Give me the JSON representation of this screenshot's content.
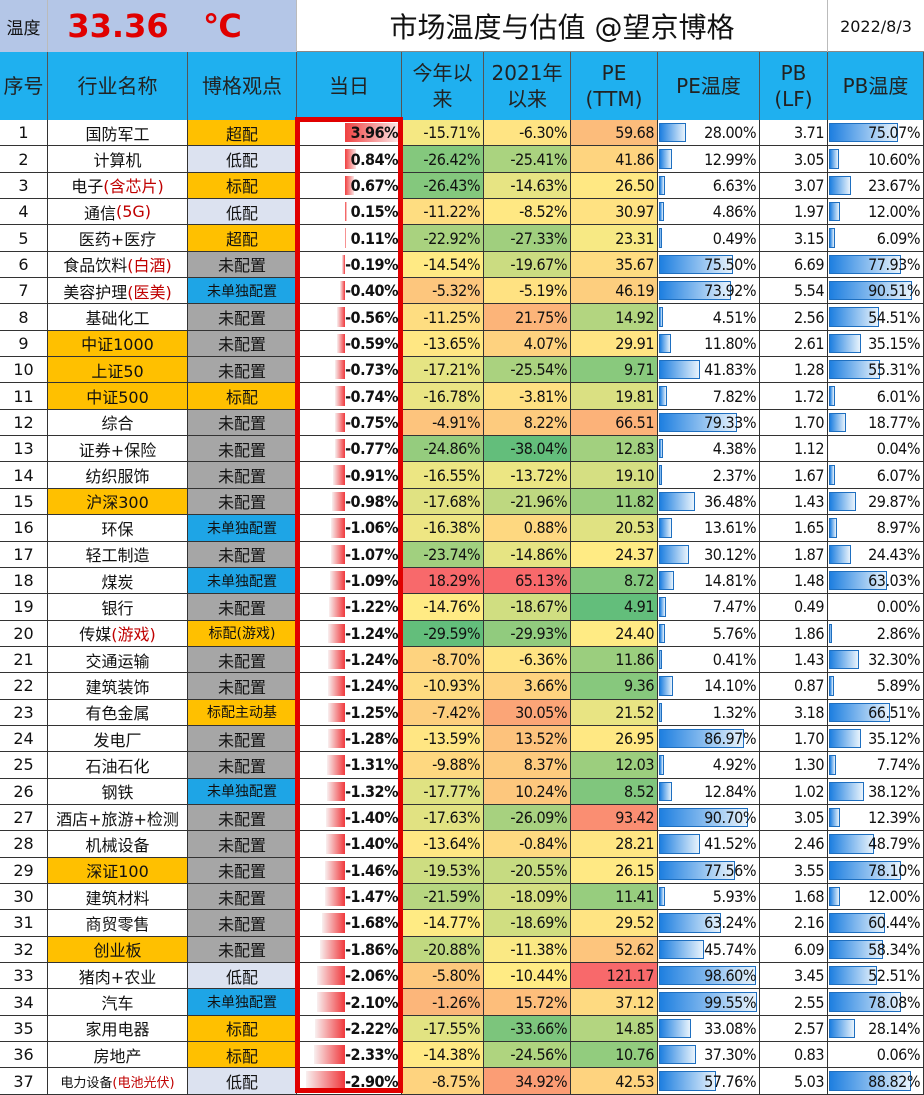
{
  "header": {
    "temp_label": "温度",
    "temp_value": "33.36",
    "temp_unit": "℃",
    "title": "市场温度与估值  @望京博格",
    "date": "2022/8/3"
  },
  "columns": [
    "序号",
    "行业名称",
    "博格观点",
    "当日",
    "今年以来",
    "2021年以来",
    "PE\n(TTM)",
    "PE温度",
    "PB\n(LF)",
    "PB温度"
  ],
  "colors": {
    "overweight": "#FFC000",
    "underweight": "#DCE2F0",
    "unallocated": "#A6A6A6",
    "not_separate": "#1EA5E6",
    "header": "#1FB0EF",
    "frame": "#E00000"
  },
  "rows": [
    {
      "no": "1",
      "name": "国防军工",
      "opinion": "超配",
      "op": "overweight",
      "day": "3.96%",
      "ytd": "-15.71%",
      "y2021": "-6.30%",
      "pe": "59.68",
      "pe_temp": "28.00%",
      "pb": "3.71",
      "pb_temp": "75.07%"
    },
    {
      "no": "2",
      "name": "计算机",
      "opinion": "低配",
      "op": "underweight",
      "day": "0.84%",
      "ytd": "-26.42%",
      "y2021": "-25.41%",
      "pe": "41.86",
      "pe_temp": "12.99%",
      "pb": "3.05",
      "pb_temp": "10.60%"
    },
    {
      "no": "3",
      "name": "电子",
      "name_note": "(含芯片)",
      "opinion": "标配",
      "op": "overweight",
      "day": "0.67%",
      "ytd": "-26.43%",
      "y2021": "-14.63%",
      "pe": "26.50",
      "pe_temp": "6.63%",
      "pb": "3.07",
      "pb_temp": "23.67%"
    },
    {
      "no": "4",
      "name": "通信",
      "name_note": "(5G)",
      "opinion": "低配",
      "op": "underweight",
      "day": "0.15%",
      "ytd": "-11.22%",
      "y2021": "-8.52%",
      "pe": "30.97",
      "pe_temp": "4.86%",
      "pb": "1.97",
      "pb_temp": "12.00%"
    },
    {
      "no": "5",
      "name": "医药+医疗",
      "opinion": "超配",
      "op": "overweight",
      "day": "0.11%",
      "ytd": "-22.92%",
      "y2021": "-27.33%",
      "pe": "23.31",
      "pe_temp": "0.49%",
      "pb": "3.15",
      "pb_temp": "6.09%"
    },
    {
      "no": "6",
      "name": "食品饮料",
      "name_note": "(白酒)",
      "opinion": "未配置",
      "op": "unallocated",
      "day": "-0.19%",
      "ytd": "-14.54%",
      "y2021": "-19.67%",
      "pe": "35.67",
      "pe_temp": "75.50%",
      "pb": "6.69",
      "pb_temp": "77.93%"
    },
    {
      "no": "7",
      "name": "美容护理",
      "name_note": "(医美)",
      "opinion": "未单独配置",
      "op": "not_separate",
      "day": "-0.40%",
      "ytd": "-5.32%",
      "y2021": "-5.19%",
      "pe": "46.19",
      "pe_temp": "73.92%",
      "pb": "5.54",
      "pb_temp": "90.51%"
    },
    {
      "no": "8",
      "name": "基础化工",
      "opinion": "未配置",
      "op": "unallocated",
      "day": "-0.56%",
      "ytd": "-11.25%",
      "y2021": "21.75%",
      "pe": "14.92",
      "pe_temp": "4.51%",
      "pb": "2.56",
      "pb_temp": "54.51%"
    },
    {
      "no": "9",
      "name": "中证1000",
      "index": true,
      "opinion": "未配置",
      "op": "unallocated",
      "day": "-0.59%",
      "ytd": "-13.65%",
      "y2021": "4.07%",
      "pe": "29.91",
      "pe_temp": "11.80%",
      "pb": "2.61",
      "pb_temp": "35.15%"
    },
    {
      "no": "10",
      "name": "上证50",
      "index": true,
      "opinion": "未配置",
      "op": "unallocated",
      "day": "-0.73%",
      "ytd": "-17.21%",
      "y2021": "-25.54%",
      "pe": "9.71",
      "pe_temp": "41.83%",
      "pb": "1.28",
      "pb_temp": "55.31%"
    },
    {
      "no": "11",
      "name": "中证500",
      "index": true,
      "opinion": "标配",
      "op": "overweight",
      "day": "-0.74%",
      "ytd": "-16.78%",
      "y2021": "-3.81%",
      "pe": "19.81",
      "pe_temp": "7.82%",
      "pb": "1.72",
      "pb_temp": "6.01%"
    },
    {
      "no": "12",
      "name": "综合",
      "opinion": "未配置",
      "op": "unallocated",
      "day": "-0.75%",
      "ytd": "-4.91%",
      "y2021": "8.22%",
      "pe": "66.51",
      "pe_temp": "79.33%",
      "pb": "1.70",
      "pb_temp": "18.77%"
    },
    {
      "no": "13",
      "name": "证券+保险",
      "opinion": "未配置",
      "op": "unallocated",
      "day": "-0.77%",
      "ytd": "-24.86%",
      "y2021": "-38.04%",
      "pe": "12.83",
      "pe_temp": "4.38%",
      "pb": "1.12",
      "pb_temp": "0.04%"
    },
    {
      "no": "14",
      "name": "纺织服饰",
      "opinion": "未配置",
      "op": "unallocated",
      "day": "-0.91%",
      "ytd": "-16.55%",
      "y2021": "-13.72%",
      "pe": "19.10",
      "pe_temp": "2.37%",
      "pb": "1.67",
      "pb_temp": "6.07%"
    },
    {
      "no": "15",
      "name": "沪深300",
      "index": true,
      "opinion": "未配置",
      "op": "unallocated",
      "day": "-0.98%",
      "ytd": "-17.68%",
      "y2021": "-21.96%",
      "pe": "11.82",
      "pe_temp": "36.48%",
      "pb": "1.43",
      "pb_temp": "29.87%"
    },
    {
      "no": "16",
      "name": "环保",
      "opinion": "未单独配置",
      "op": "not_separate",
      "day": "-1.06%",
      "ytd": "-16.38%",
      "y2021": "0.88%",
      "pe": "20.53",
      "pe_temp": "13.61%",
      "pb": "1.65",
      "pb_temp": "8.97%"
    },
    {
      "no": "17",
      "name": "轻工制造",
      "opinion": "未配置",
      "op": "unallocated",
      "day": "-1.07%",
      "ytd": "-23.74%",
      "y2021": "-14.86%",
      "pe": "24.37",
      "pe_temp": "30.12%",
      "pb": "1.87",
      "pb_temp": "24.43%"
    },
    {
      "no": "18",
      "name": "煤炭",
      "opinion": "未单独配置",
      "op": "not_separate",
      "day": "-1.09%",
      "ytd": "18.29%",
      "y2021": "65.13%",
      "pe": "8.72",
      "pe_temp": "14.81%",
      "pb": "1.48",
      "pb_temp": "63.03%"
    },
    {
      "no": "19",
      "name": "银行",
      "opinion": "未配置",
      "op": "unallocated",
      "day": "-1.22%",
      "ytd": "-14.76%",
      "y2021": "-18.67%",
      "pe": "4.91",
      "pe_temp": "7.47%",
      "pb": "0.49",
      "pb_temp": "0.00%"
    },
    {
      "no": "20",
      "name": "传媒",
      "name_note": "(游戏)",
      "opinion": "标配(游戏)",
      "op": "overweight",
      "day": "-1.24%",
      "ytd": "-29.59%",
      "y2021": "-29.93%",
      "pe": "24.40",
      "pe_temp": "5.76%",
      "pb": "1.86",
      "pb_temp": "2.86%"
    },
    {
      "no": "21",
      "name": "交通运输",
      "opinion": "未配置",
      "op": "unallocated",
      "day": "-1.24%",
      "ytd": "-8.70%",
      "y2021": "-6.36%",
      "pe": "11.86",
      "pe_temp": "0.41%",
      "pb": "1.43",
      "pb_temp": "32.30%"
    },
    {
      "no": "22",
      "name": "建筑装饰",
      "opinion": "未配置",
      "op": "unallocated",
      "day": "-1.24%",
      "ytd": "-10.93%",
      "y2021": "3.66%",
      "pe": "9.36",
      "pe_temp": "14.10%",
      "pb": "0.87",
      "pb_temp": "5.89%"
    },
    {
      "no": "23",
      "name": "有色金属",
      "opinion": "标配主动基",
      "op": "overweight",
      "day": "-1.25%",
      "ytd": "-7.42%",
      "y2021": "30.05%",
      "pe": "21.52",
      "pe_temp": "1.32%",
      "pb": "3.18",
      "pb_temp": "66.51%"
    },
    {
      "no": "24",
      "name": "发电厂",
      "opinion": "未配置",
      "op": "unallocated",
      "day": "-1.28%",
      "ytd": "-13.59%",
      "y2021": "13.52%",
      "pe": "26.95",
      "pe_temp": "86.97%",
      "pb": "1.70",
      "pb_temp": "35.12%"
    },
    {
      "no": "25",
      "name": "石油石化",
      "opinion": "未配置",
      "op": "unallocated",
      "day": "-1.31%",
      "ytd": "-9.88%",
      "y2021": "8.37%",
      "pe": "12.03",
      "pe_temp": "4.92%",
      "pb": "1.30",
      "pb_temp": "7.74%"
    },
    {
      "no": "26",
      "name": "钢铁",
      "opinion": "未单独配置",
      "op": "not_separate",
      "day": "-1.32%",
      "ytd": "-17.77%",
      "y2021": "10.24%",
      "pe": "8.52",
      "pe_temp": "12.84%",
      "pb": "1.02",
      "pb_temp": "38.12%"
    },
    {
      "no": "27",
      "name": "酒店+旅游+检测",
      "opinion": "未配置",
      "op": "unallocated",
      "day": "-1.40%",
      "ytd": "-17.63%",
      "y2021": "-26.09%",
      "pe": "93.42",
      "pe_temp": "90.70%",
      "pb": "3.05",
      "pb_temp": "12.39%"
    },
    {
      "no": "28",
      "name": "机械设备",
      "opinion": "未配置",
      "op": "unallocated",
      "day": "-1.40%",
      "ytd": "-13.64%",
      "y2021": "-0.84%",
      "pe": "28.21",
      "pe_temp": "41.52%",
      "pb": "2.46",
      "pb_temp": "48.79%"
    },
    {
      "no": "29",
      "name": "深证100",
      "index": true,
      "opinion": "未配置",
      "op": "unallocated",
      "day": "-1.46%",
      "ytd": "-19.53%",
      "y2021": "-20.55%",
      "pe": "26.15",
      "pe_temp": "77.56%",
      "pb": "3.55",
      "pb_temp": "78.10%"
    },
    {
      "no": "30",
      "name": "建筑材料",
      "opinion": "未配置",
      "op": "unallocated",
      "day": "-1.47%",
      "ytd": "-21.59%",
      "y2021": "-18.09%",
      "pe": "11.41",
      "pe_temp": "5.93%",
      "pb": "1.68",
      "pb_temp": "12.00%"
    },
    {
      "no": "31",
      "name": "商贸零售",
      "opinion": "未配置",
      "op": "unallocated",
      "day": "-1.68%",
      "ytd": "-14.77%",
      "y2021": "-18.69%",
      "pe": "29.52",
      "pe_temp": "63.24%",
      "pb": "2.16",
      "pb_temp": "60.44%"
    },
    {
      "no": "32",
      "name": "创业板",
      "index": true,
      "opinion": "未配置",
      "op": "unallocated",
      "day": "-1.86%",
      "ytd": "-20.88%",
      "y2021": "-11.38%",
      "pe": "52.62",
      "pe_temp": "45.74%",
      "pb": "6.09",
      "pb_temp": "58.34%"
    },
    {
      "no": "33",
      "name": "猪肉+农业",
      "opinion": "低配",
      "op": "underweight",
      "day": "-2.06%",
      "ytd": "-5.80%",
      "y2021": "-10.44%",
      "pe": "121.17",
      "pe_temp": "98.60%",
      "pb": "3.45",
      "pb_temp": "52.51%"
    },
    {
      "no": "34",
      "name": "汽车",
      "opinion": "未单独配置",
      "op": "not_separate",
      "day": "-2.10%",
      "ytd": "-1.26%",
      "y2021": "15.72%",
      "pe": "37.12",
      "pe_temp": "99.55%",
      "pb": "2.55",
      "pb_temp": "78.08%"
    },
    {
      "no": "35",
      "name": "家用电器",
      "opinion": "标配",
      "op": "overweight",
      "day": "-2.22%",
      "ytd": "-17.55%",
      "y2021": "-33.66%",
      "pe": "14.85",
      "pe_temp": "33.08%",
      "pb": "2.57",
      "pb_temp": "28.14%"
    },
    {
      "no": "36",
      "name": "房地产",
      "opinion": "标配",
      "op": "overweight",
      "day": "-2.33%",
      "ytd": "-14.38%",
      "y2021": "-24.56%",
      "pe": "10.76",
      "pe_temp": "37.30%",
      "pb": "0.83",
      "pb_temp": "0.06%"
    },
    {
      "no": "37",
      "name": "电力设备",
      "name_note": "(电池光伏)",
      "opinion": "低配",
      "op": "underweight",
      "day": "-2.90%",
      "ytd": "-8.75%",
      "y2021": "34.92%",
      "pe": "42.53",
      "pe_temp": "57.76%",
      "pb": "5.03",
      "pb_temp": "88.82%"
    }
  ]
}
